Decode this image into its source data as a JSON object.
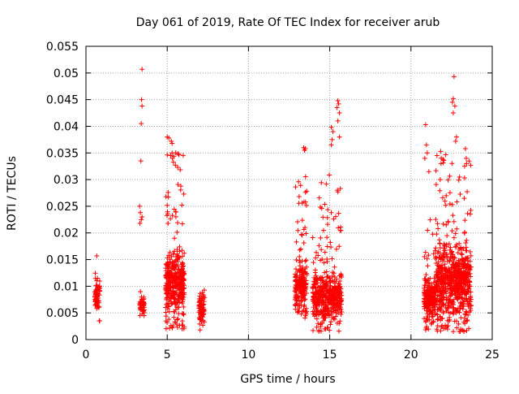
{
  "chart_data": {
    "type": "scatter",
    "title": "Day 061 of 2019, Rate Of TEC Index for receiver arub",
    "xlabel": "GPS time / hours",
    "ylabel": "ROTI / TECUs",
    "xlim": [
      0,
      25
    ],
    "ylim": [
      0,
      0.055
    ],
    "xticks": [
      0,
      5,
      10,
      15,
      20,
      25
    ],
    "xtick_labels": [
      "0",
      "5",
      "10",
      "15",
      "20",
      "25"
    ],
    "yticks": [
      0,
      0.005,
      0.01,
      0.015,
      0.02,
      0.025,
      0.03,
      0.035,
      0.04,
      0.045,
      0.05,
      0.055
    ],
    "ytick_labels": [
      "0",
      "0.005",
      "0.01",
      "0.015",
      "0.02",
      "0.025",
      "0.03",
      "0.035",
      "0.04",
      "0.045",
      "0.05",
      "0.055"
    ],
    "grid": true,
    "marker": "+",
    "marker_color": "#ff0000",
    "clusters": [
      {
        "x_start": 0.55,
        "x_end": 0.85,
        "y_min": 0.0035,
        "y_max": 0.0168,
        "y_typical_min": 0.004,
        "y_typical_max": 0.012,
        "n": 70
      },
      {
        "x_start": 3.3,
        "x_end": 3.6,
        "y_min": 0.0045,
        "y_max": 0.0092,
        "y_typical_min": 0.0045,
        "y_typical_max": 0.009,
        "n": 45
      },
      {
        "x_start": 4.9,
        "x_end": 6.05,
        "y_min": 0.002,
        "y_max": 0.038,
        "y_typical_min": 0.003,
        "y_typical_max": 0.018,
        "n": 420
      },
      {
        "x_start": 6.95,
        "x_end": 7.3,
        "y_min": 0.0018,
        "y_max": 0.0102,
        "y_typical_min": 0.002,
        "y_typical_max": 0.01,
        "n": 80
      },
      {
        "x_start": 12.85,
        "x_end": 13.6,
        "y_min": 0.004,
        "y_max": 0.031,
        "y_typical_min": 0.004,
        "y_typical_max": 0.016,
        "n": 220
      },
      {
        "x_start": 13.95,
        "x_end": 15.75,
        "y_min": 0.0015,
        "y_max": 0.032,
        "y_typical_min": 0.002,
        "y_typical_max": 0.014,
        "n": 480
      },
      {
        "x_start": 20.8,
        "x_end": 21.5,
        "y_min": 0.0018,
        "y_max": 0.024,
        "y_typical_min": 0.003,
        "y_typical_max": 0.012,
        "n": 220
      },
      {
        "x_start": 21.5,
        "x_end": 23.7,
        "y_min": 0.0015,
        "y_max": 0.036,
        "y_typical_min": 0.002,
        "y_typical_max": 0.02,
        "n": 760
      }
    ],
    "outliers": [
      [
        3.45,
        0.0507
      ],
      [
        3.42,
        0.045
      ],
      [
        3.45,
        0.0438
      ],
      [
        3.4,
        0.0405
      ],
      [
        3.38,
        0.0335
      ],
      [
        3.3,
        0.025
      ],
      [
        3.35,
        0.0238
      ],
      [
        3.4,
        0.0225
      ],
      [
        3.32,
        0.0218
      ],
      [
        3.45,
        0.023
      ],
      [
        5.0,
        0.038
      ],
      [
        5.1,
        0.0378
      ],
      [
        5.25,
        0.0372
      ],
      [
        5.3,
        0.0368
      ],
      [
        5.3,
        0.035
      ],
      [
        13.4,
        0.036
      ],
      [
        13.45,
        0.0355
      ],
      [
        13.5,
        0.0358
      ],
      [
        15.5,
        0.0448
      ],
      [
        15.55,
        0.0442
      ],
      [
        15.45,
        0.0435
      ],
      [
        15.6,
        0.0425
      ],
      [
        15.5,
        0.041
      ],
      [
        15.1,
        0.0398
      ],
      [
        15.2,
        0.039
      ],
      [
        15.15,
        0.0375
      ],
      [
        15.6,
        0.038
      ],
      [
        15.1,
        0.0365
      ],
      [
        20.9,
        0.0403
      ],
      [
        20.95,
        0.0365
      ],
      [
        21.0,
        0.035
      ],
      [
        20.85,
        0.034
      ],
      [
        21.1,
        0.0315
      ],
      [
        22.65,
        0.0493
      ],
      [
        22.6,
        0.0452
      ],
      [
        22.55,
        0.0445
      ],
      [
        22.7,
        0.0438
      ],
      [
        22.6,
        0.0425
      ],
      [
        21.6,
        0.0345
      ],
      [
        22.8,
        0.038
      ],
      [
        22.75,
        0.0372
      ],
      [
        23.35,
        0.0358
      ],
      [
        23.4,
        0.034
      ],
      [
        21.85,
        0.033
      ],
      [
        23.3,
        0.0325
      ],
      [
        21.8,
        0.03
      ]
    ]
  }
}
